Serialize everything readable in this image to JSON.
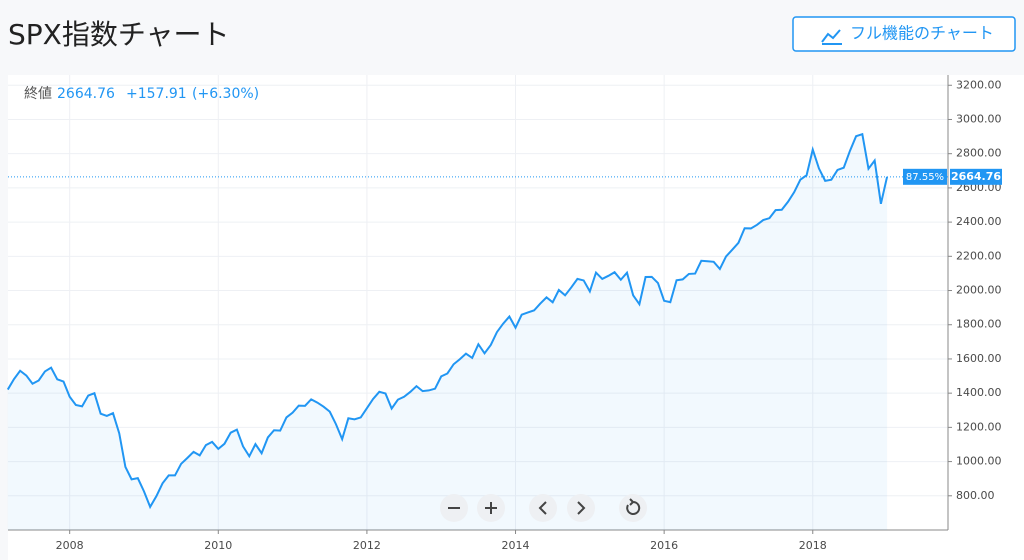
{
  "title": "SPX指数チャート",
  "button": "フル機能のチャート",
  "chart_data": {
    "type": "line",
    "legend": {
      "label": "終値",
      "change": "+157.91",
      "change_pct": "(+6.30%)"
    },
    "price_tag_pct": "87.55%",
    "color": "#2196f3",
    "area": true,
    "grid": true,
    "x": [
      2007.167,
      2007.25,
      2007.333,
      2007.417,
      2007.5,
      2007.583,
      2007.667,
      2007.75,
      2007.833,
      2007.917,
      2008,
      2008.083,
      2008.167,
      2008.25,
      2008.333,
      2008.417,
      2008.5,
      2008.583,
      2008.667,
      2008.75,
      2008.833,
      2008.917,
      2009,
      2009.083,
      2009.167,
      2009.25,
      2009.333,
      2009.417,
      2009.5,
      2009.583,
      2009.667,
      2009.75,
      2009.833,
      2009.917,
      2010,
      2010.083,
      2010.167,
      2010.25,
      2010.333,
      2010.417,
      2010.5,
      2010.583,
      2010.667,
      2010.75,
      2010.833,
      2010.917,
      2011,
      2011.083,
      2011.167,
      2011.25,
      2011.333,
      2011.417,
      2011.5,
      2011.583,
      2011.667,
      2011.75,
      2011.833,
      2011.917,
      2012,
      2012.083,
      2012.167,
      2012.25,
      2012.333,
      2012.417,
      2012.5,
      2012.583,
      2012.667,
      2012.75,
      2012.833,
      2012.917,
      2013,
      2013.083,
      2013.167,
      2013.25,
      2013.333,
      2013.417,
      2013.5,
      2013.583,
      2013.667,
      2013.75,
      2013.833,
      2013.917,
      2014,
      2014.083,
      2014.167,
      2014.25,
      2014.333,
      2014.417,
      2014.5,
      2014.583,
      2014.667,
      2014.75,
      2014.833,
      2014.917,
      2015,
      2015.083,
      2015.167,
      2015.25,
      2015.333,
      2015.417,
      2015.5,
      2015.583,
      2015.667,
      2015.75,
      2015.833,
      2015.917,
      2016,
      2016.083,
      2016.167,
      2016.25,
      2016.333,
      2016.417,
      2016.5,
      2016.583,
      2016.667,
      2016.75,
      2016.833,
      2016.917,
      2017,
      2017.083,
      2017.167,
      2017.25,
      2017.333,
      2017.417,
      2017.5,
      2017.583,
      2017.667,
      2017.75,
      2017.833,
      2017.917,
      2018,
      2018.083,
      2018.167,
      2018.25,
      2018.333,
      2018.417,
      2018.5,
      2018.583,
      2018.667,
      2018.75,
      2018.833,
      2018.917,
      2019
    ],
    "values": [
      1421,
      1482,
      1531,
      1503,
      1455,
      1474,
      1527,
      1549,
      1481,
      1468,
      1379,
      1331,
      1323,
      1386,
      1400,
      1280,
      1267,
      1283,
      1165,
      969,
      896,
      903,
      826,
      735,
      798,
      873,
      919,
      919,
      987,
      1021,
      1057,
      1036,
      1096,
      1115,
      1074,
      1104,
      1169,
      1187,
      1089,
      1031,
      1102,
      1049,
      1141,
      1183,
      1181,
      1258,
      1286,
      1327,
      1326,
      1364,
      1345,
      1321,
      1292,
      1219,
      1131,
      1253,
      1247,
      1258,
      1312,
      1366,
      1408,
      1398,
      1310,
      1362,
      1379,
      1407,
      1441,
      1412,
      1416,
      1426,
      1498,
      1515,
      1569,
      1598,
      1631,
      1606,
      1686,
      1633,
      1682,
      1757,
      1806,
      1848,
      1783,
      1859,
      1872,
      1884,
      1924,
      1960,
      1931,
      2003,
      1972,
      2018,
      2068,
      2059,
      1995,
      2105,
      2068,
      2086,
      2107,
      2063,
      2104,
      1972,
      1920,
      2079,
      2080,
      2044,
      1940,
      1932,
      2060,
      2065,
      2097,
      2099,
      2174,
      2171,
      2168,
      2126,
      2199,
      2239,
      2279,
      2364,
      2363,
      2384,
      2412,
      2423,
      2470,
      2472,
      2519,
      2575,
      2648,
      2674,
      2824,
      2714,
      2641,
      2648,
      2705,
      2718,
      2816,
      2902,
      2914,
      2712,
      2760,
      2507,
      2664.76
    ],
    "xlim": [
      2007.17,
      2019.82
    ],
    "xticks": [
      2008,
      2010,
      2012,
      2014,
      2016,
      2018
    ],
    "ylim": [
      600,
      3260
    ],
    "yticks": [
      {
        "value": 800,
        "label": "800.00"
      },
      {
        "value": 1000,
        "label": "1000.00"
      },
      {
        "value": 1200,
        "label": "1200.00"
      },
      {
        "value": 1400,
        "label": "1400.00"
      },
      {
        "value": 1600,
        "label": "1600.00"
      },
      {
        "value": 1800,
        "label": "1800.00"
      },
      {
        "value": 2000,
        "label": "2000.00"
      },
      {
        "value": 2200,
        "label": "2200.00"
      },
      {
        "value": 2400,
        "label": "2400.00"
      },
      {
        "value": 2600,
        "label": "2600.00"
      },
      {
        "value": 2800,
        "label": "2800.00"
      },
      {
        "value": 3000,
        "label": "3000.00"
      },
      {
        "value": 3200,
        "label": "3200.00"
      }
    ]
  }
}
